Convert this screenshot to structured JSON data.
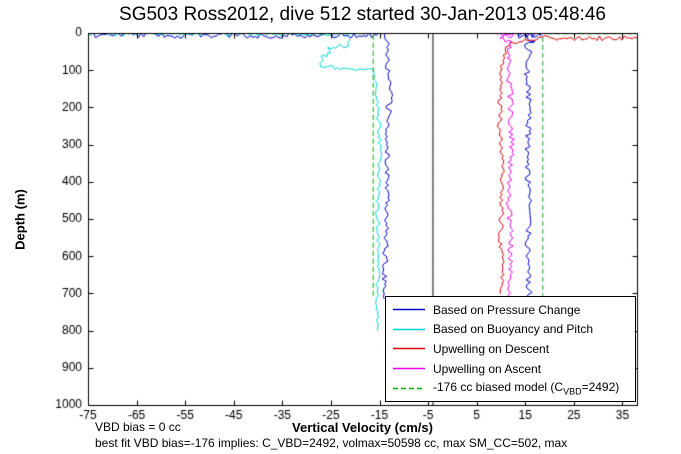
{
  "title": "SG503 Ross2012, dive 512 started 30-Jan-2013 05:48:46",
  "footnotes": {
    "line1": "VBD bias = 0 cc",
    "line2": "best fit VBD bias=-176 implies: C_VBD=2492, volmax=50598 cc, max SM_CC=502, max"
  },
  "chart_data": {
    "type": "line",
    "title": "SG503 Ross2012, dive 512 started 30-Jan-2013 05:48:46",
    "xlabel": "Vertical Velocity (cm/s)",
    "ylabel": "Depth (m)",
    "xlim": [
      -75,
      38
    ],
    "ylim": [
      0,
      1000
    ],
    "y_inverted": true,
    "grid": false,
    "x_ticks": [
      -75,
      -65,
      -55,
      -45,
      -35,
      -25,
      -15,
      -5,
      5,
      15,
      25,
      35
    ],
    "y_ticks": [
      0,
      100,
      200,
      300,
      400,
      500,
      600,
      700,
      800,
      900,
      1000
    ],
    "legend": {
      "position": "lower-right",
      "entries": [
        {
          "label": "Based on Pressure Change",
          "color": "#0000cc",
          "dash": "solid"
        },
        {
          "label": "Based on Buoyancy and Pitch",
          "color": "#00d5d5",
          "dash": "solid"
        },
        {
          "label": "Upwelling on Descent",
          "color": "#dd0000",
          "dash": "solid"
        },
        {
          "label": "Upwelling on Ascent",
          "color": "#ee00ee",
          "dash": "solid"
        },
        {
          "label_pre": "-176 cc biased model (C",
          "label_sub": "VBD",
          "label_post": "=2492)",
          "color": "#00aa00",
          "dash": "dashed"
        }
      ]
    },
    "series": [
      {
        "name": "pressure-change-descent",
        "color": "#0000cc",
        "dash": "solid",
        "noise": 3,
        "points": [
          [
            -75,
            5
          ],
          [
            -62,
            4
          ],
          [
            -55,
            7
          ],
          [
            -47,
            5
          ],
          [
            -40,
            7
          ],
          [
            -33,
            5
          ],
          [
            -25,
            6
          ],
          [
            -14,
            4
          ],
          [
            -12.8,
            25
          ],
          [
            -13.4,
            80
          ],
          [
            -12.9,
            160
          ],
          [
            -13.5,
            300
          ],
          [
            -13.2,
            450
          ],
          [
            -13.8,
            600
          ],
          [
            -13.9,
            715
          ]
        ]
      },
      {
        "name": "pressure-change-ascent",
        "color": "#0000cc",
        "dash": "solid",
        "noise": 3,
        "points": [
          [
            15.9,
            712
          ],
          [
            15.4,
            600
          ],
          [
            15.9,
            470
          ],
          [
            15.3,
            340
          ],
          [
            15.8,
            200
          ],
          [
            15.2,
            110
          ],
          [
            16.1,
            60
          ],
          [
            15.4,
            30
          ],
          [
            16.8,
            18
          ],
          [
            14.5,
            10
          ],
          [
            13.2,
            5
          ],
          [
            16.5,
            7
          ],
          [
            18.3,
            3
          ],
          [
            15.5,
            2
          ]
        ]
      },
      {
        "name": "buoyancy-pitch",
        "color": "#00d5d5",
        "dash": "solid",
        "noise": 2,
        "points": [
          [
            -75,
            2
          ],
          [
            -55,
            2
          ],
          [
            -36,
            3
          ],
          [
            -22,
            2
          ],
          [
            -21,
            8
          ],
          [
            -21.3,
            35
          ],
          [
            -25.6,
            40
          ],
          [
            -25,
            54
          ],
          [
            -27,
            64
          ],
          [
            -26.8,
            90
          ],
          [
            -22,
            96
          ],
          [
            -16.2,
            102
          ],
          [
            -15.3,
            200
          ],
          [
            -14.9,
            330
          ],
          [
            -15.4,
            480
          ],
          [
            -15.1,
            620
          ],
          [
            -15.6,
            720
          ],
          [
            -15.3,
            800
          ]
        ]
      },
      {
        "name": "upwelling-descent",
        "color": "#dd0000",
        "dash": "solid",
        "noise": 2.5,
        "points": [
          [
            38,
            14
          ],
          [
            21,
            14
          ],
          [
            19,
            13
          ],
          [
            15.5,
            17
          ],
          [
            12,
            28
          ],
          [
            10.6,
            60
          ],
          [
            10,
            140
          ],
          [
            9.7,
            260
          ],
          [
            10.4,
            400
          ],
          [
            9.9,
            540
          ],
          [
            10.3,
            650
          ],
          [
            9.5,
            700
          ]
        ]
      },
      {
        "name": "upwelling-ascent",
        "color": "#ee00ee",
        "dash": "solid",
        "noise": 3,
        "points": [
          [
            9.2,
            3
          ],
          [
            12.6,
            7
          ],
          [
            9.8,
            13
          ],
          [
            12.2,
            22
          ],
          [
            11.4,
            60
          ],
          [
            11.9,
            150
          ],
          [
            12.3,
            300
          ],
          [
            11.6,
            450
          ],
          [
            12.1,
            600
          ],
          [
            11.8,
            712
          ]
        ]
      },
      {
        "name": "biased-model-surface-left",
        "color": "#00aa00",
        "dash": "dashed",
        "noise": 0,
        "points": [
          [
            -75,
            1.5
          ],
          [
            -45,
            1.5
          ],
          [
            -30,
            2
          ],
          [
            -17.5,
            2
          ]
        ]
      },
      {
        "name": "biased-model-descent",
        "color": "#00aa00",
        "dash": "dashed",
        "noise": 0,
        "points": [
          [
            -16.3,
            5
          ],
          [
            -16.3,
            712
          ]
        ]
      },
      {
        "name": "biased-model-ascent",
        "color": "#00aa00",
        "dash": "dashed",
        "noise": 0,
        "points": [
          [
            18.6,
            712
          ],
          [
            18.6,
            5
          ]
        ]
      },
      {
        "name": "biased-model-surface-right",
        "color": "#00aa00",
        "dash": "dashed",
        "noise": 0,
        "points": [
          [
            19.5,
            2
          ],
          [
            38,
            2
          ]
        ]
      },
      {
        "name": "zero-reference-line",
        "color": "#000000",
        "dash": "solid",
        "noise": 0,
        "points": [
          [
            -4,
            0
          ],
          [
            -4,
            1000
          ]
        ]
      }
    ]
  }
}
